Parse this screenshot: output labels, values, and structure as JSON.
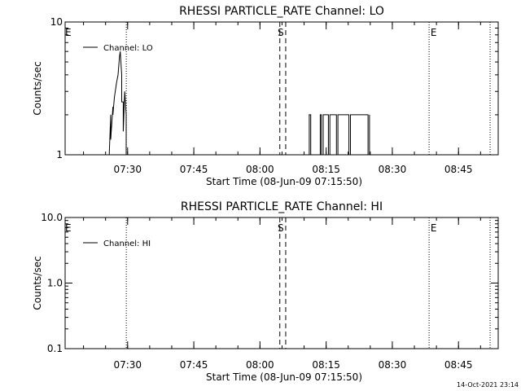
{
  "colors": {
    "background": "#ffffff",
    "foreground": "#000000"
  },
  "footer": {
    "timestamp": "14-Oct-2021 23:14"
  },
  "chart_data": [
    {
      "type": "line",
      "title": "RHESSI PARTICLE_RATE Channel: LO",
      "xlabel": "Start Time (08-Jun-09 07:15:50)",
      "ylabel": "Counts/sec",
      "yscale": "log",
      "ylim": [
        1,
        10
      ],
      "xlim": [
        "07:15:50",
        "08:54:00"
      ],
      "xticks": [
        "07:30",
        "07:45",
        "08:00",
        "08:15",
        "08:30",
        "08:45"
      ],
      "yticks": [
        "1",
        "10"
      ],
      "legend": {
        "entries": [
          "Channel: LO"
        ],
        "placement": "top-left"
      },
      "markers": [
        {
          "time": "07:29:42",
          "style": "dotted",
          "label": ""
        },
        {
          "time": "08:04:30",
          "style": "dashed",
          "label": ""
        },
        {
          "time": "08:05:50",
          "style": "dashed",
          "label": ""
        },
        {
          "time": "08:38:20",
          "style": "dotted",
          "label": ""
        },
        {
          "time": "08:52:10",
          "style": "dotted",
          "label": ""
        }
      ],
      "annotations": [
        {
          "text": "E",
          "time": "07:15:50"
        },
        {
          "text": "S",
          "time": "08:04:00"
        },
        {
          "text": "E",
          "time": "08:38:40"
        }
      ],
      "series": [
        {
          "name": "Channel: LO",
          "x": [
            "07:25:50",
            "07:26:10",
            "07:26:10",
            "07:26:40",
            "07:26:40",
            "07:27:00",
            "07:27:00",
            "07:27:30",
            "07:27:50",
            "07:28:10",
            "07:28:20",
            "07:28:40",
            "07:28:40",
            "07:29:00",
            "07:29:00",
            "07:29:20",
            "07:29:40",
            "07:29:40",
            "08:11:10",
            "08:11:10",
            "08:11:30",
            "08:11:30",
            "08:13:40",
            "08:13:40",
            "08:13:55",
            "08:13:55",
            "08:14:20",
            "08:14:20",
            "08:15:30",
            "08:15:30",
            "08:15:50",
            "08:15:50",
            "08:17:20",
            "08:17:20",
            "08:17:40",
            "08:17:40",
            "08:20:10",
            "08:20:10",
            "08:20:30",
            "08:20:30",
            "08:24:30",
            "08:24:30",
            "08:24:50",
            "08:24:50"
          ],
          "y": [
            1,
            2,
            1.3,
            2.3,
            2,
            2.7,
            2.7,
            3.5,
            4,
            5.5,
            6,
            4,
            2.5,
            2.5,
            1.5,
            3,
            2,
            1,
            1,
            2,
            2,
            1,
            1,
            2,
            2,
            1,
            1,
            2,
            2,
            1,
            1,
            2,
            2,
            1,
            1,
            2,
            2,
            1,
            1,
            2,
            2,
            1,
            1,
            2
          ]
        }
      ]
    },
    {
      "type": "line",
      "title": "RHESSI PARTICLE_RATE Channel: HI",
      "xlabel": "Start Time (08-Jun-09 07:15:50)",
      "ylabel": "Counts/sec",
      "yscale": "log",
      "ylim": [
        0.1,
        10
      ],
      "xlim": [
        "07:15:50",
        "08:54:00"
      ],
      "xticks": [
        "07:30",
        "07:45",
        "08:00",
        "08:15",
        "08:30",
        "08:45"
      ],
      "yticks": [
        "0.1",
        "1.0",
        "10.0"
      ],
      "legend": {
        "entries": [
          "Channel: HI"
        ],
        "placement": "top-left"
      },
      "markers": [
        {
          "time": "07:29:42",
          "style": "dotted",
          "label": ""
        },
        {
          "time": "08:04:30",
          "style": "dashed",
          "label": ""
        },
        {
          "time": "08:05:50",
          "style": "dashed",
          "label": ""
        },
        {
          "time": "08:38:20",
          "style": "dotted",
          "label": ""
        },
        {
          "time": "08:52:10",
          "style": "dotted",
          "label": ""
        }
      ],
      "annotations": [
        {
          "text": "E",
          "time": "07:15:50"
        },
        {
          "text": "S",
          "time": "08:04:00"
        },
        {
          "text": "E",
          "time": "08:38:40"
        }
      ],
      "series": [
        {
          "name": "Channel: HI",
          "x": [],
          "y": []
        }
      ]
    }
  ]
}
